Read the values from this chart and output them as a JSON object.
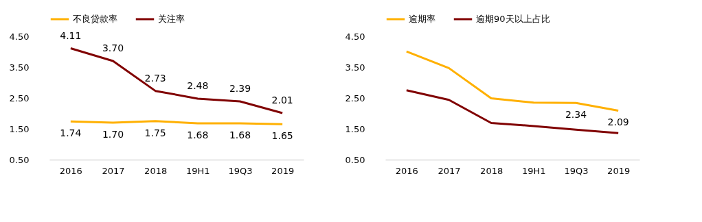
{
  "chart_data": [
    {
      "type": "line",
      "categories": [
        "2016",
        "2017",
        "2018",
        "19H1",
        "19Q3",
        "2019"
      ],
      "series": [
        {
          "name": "不良贷款率",
          "color": "#ffb000",
          "values": [
            1.74,
            1.7,
            1.75,
            1.68,
            1.68,
            1.65
          ],
          "value_labels": [
            "1.74",
            "1.70",
            "1.75",
            "1.68",
            "1.68",
            "1.65"
          ]
        },
        {
          "name": "关注率",
          "color": "#800000",
          "values": [
            4.11,
            3.7,
            2.73,
            2.48,
            2.39,
            2.01
          ],
          "value_labels": [
            "4.11",
            "3.70",
            "2.73",
            "2.48",
            "2.39",
            "2.01"
          ]
        }
      ],
      "ylim": [
        0.5,
        4.5
      ],
      "yticks": [
        {
          "value": 0.5,
          "label": "0.50"
        },
        {
          "value": 1.5,
          "label": "1.50"
        },
        {
          "value": 2.5,
          "label": "2.50"
        },
        {
          "value": 3.5,
          "label": "3.50"
        },
        {
          "value": 4.5,
          "label": "4.50"
        }
      ],
      "legend": "top",
      "grid": false
    },
    {
      "type": "line",
      "categories": [
        "2016",
        "2017",
        "2018",
        "19H1",
        "19Q3",
        "2019"
      ],
      "series": [
        {
          "name": "逾期率",
          "color": "#ffb000",
          "values": [
            4.01,
            3.47,
            2.49,
            2.35,
            2.34,
            2.09
          ],
          "value_labels": [
            null,
            null,
            null,
            null,
            "2.34",
            "2.09"
          ]
        },
        {
          "name": "逾期90天以上占比",
          "color": "#800000",
          "values": [
            2.75,
            2.44,
            1.69,
            1.59,
            1.47,
            1.36
          ]
        }
      ],
      "ylim": [
        0.5,
        4.5
      ],
      "yticks": [
        {
          "value": 0.5,
          "label": "0.50"
        },
        {
          "value": 1.5,
          "label": "1.50"
        },
        {
          "value": 2.5,
          "label": "2.50"
        },
        {
          "value": 3.5,
          "label": "3.50"
        },
        {
          "value": 4.5,
          "label": "4.50"
        }
      ],
      "legend": "top",
      "grid": false
    }
  ]
}
